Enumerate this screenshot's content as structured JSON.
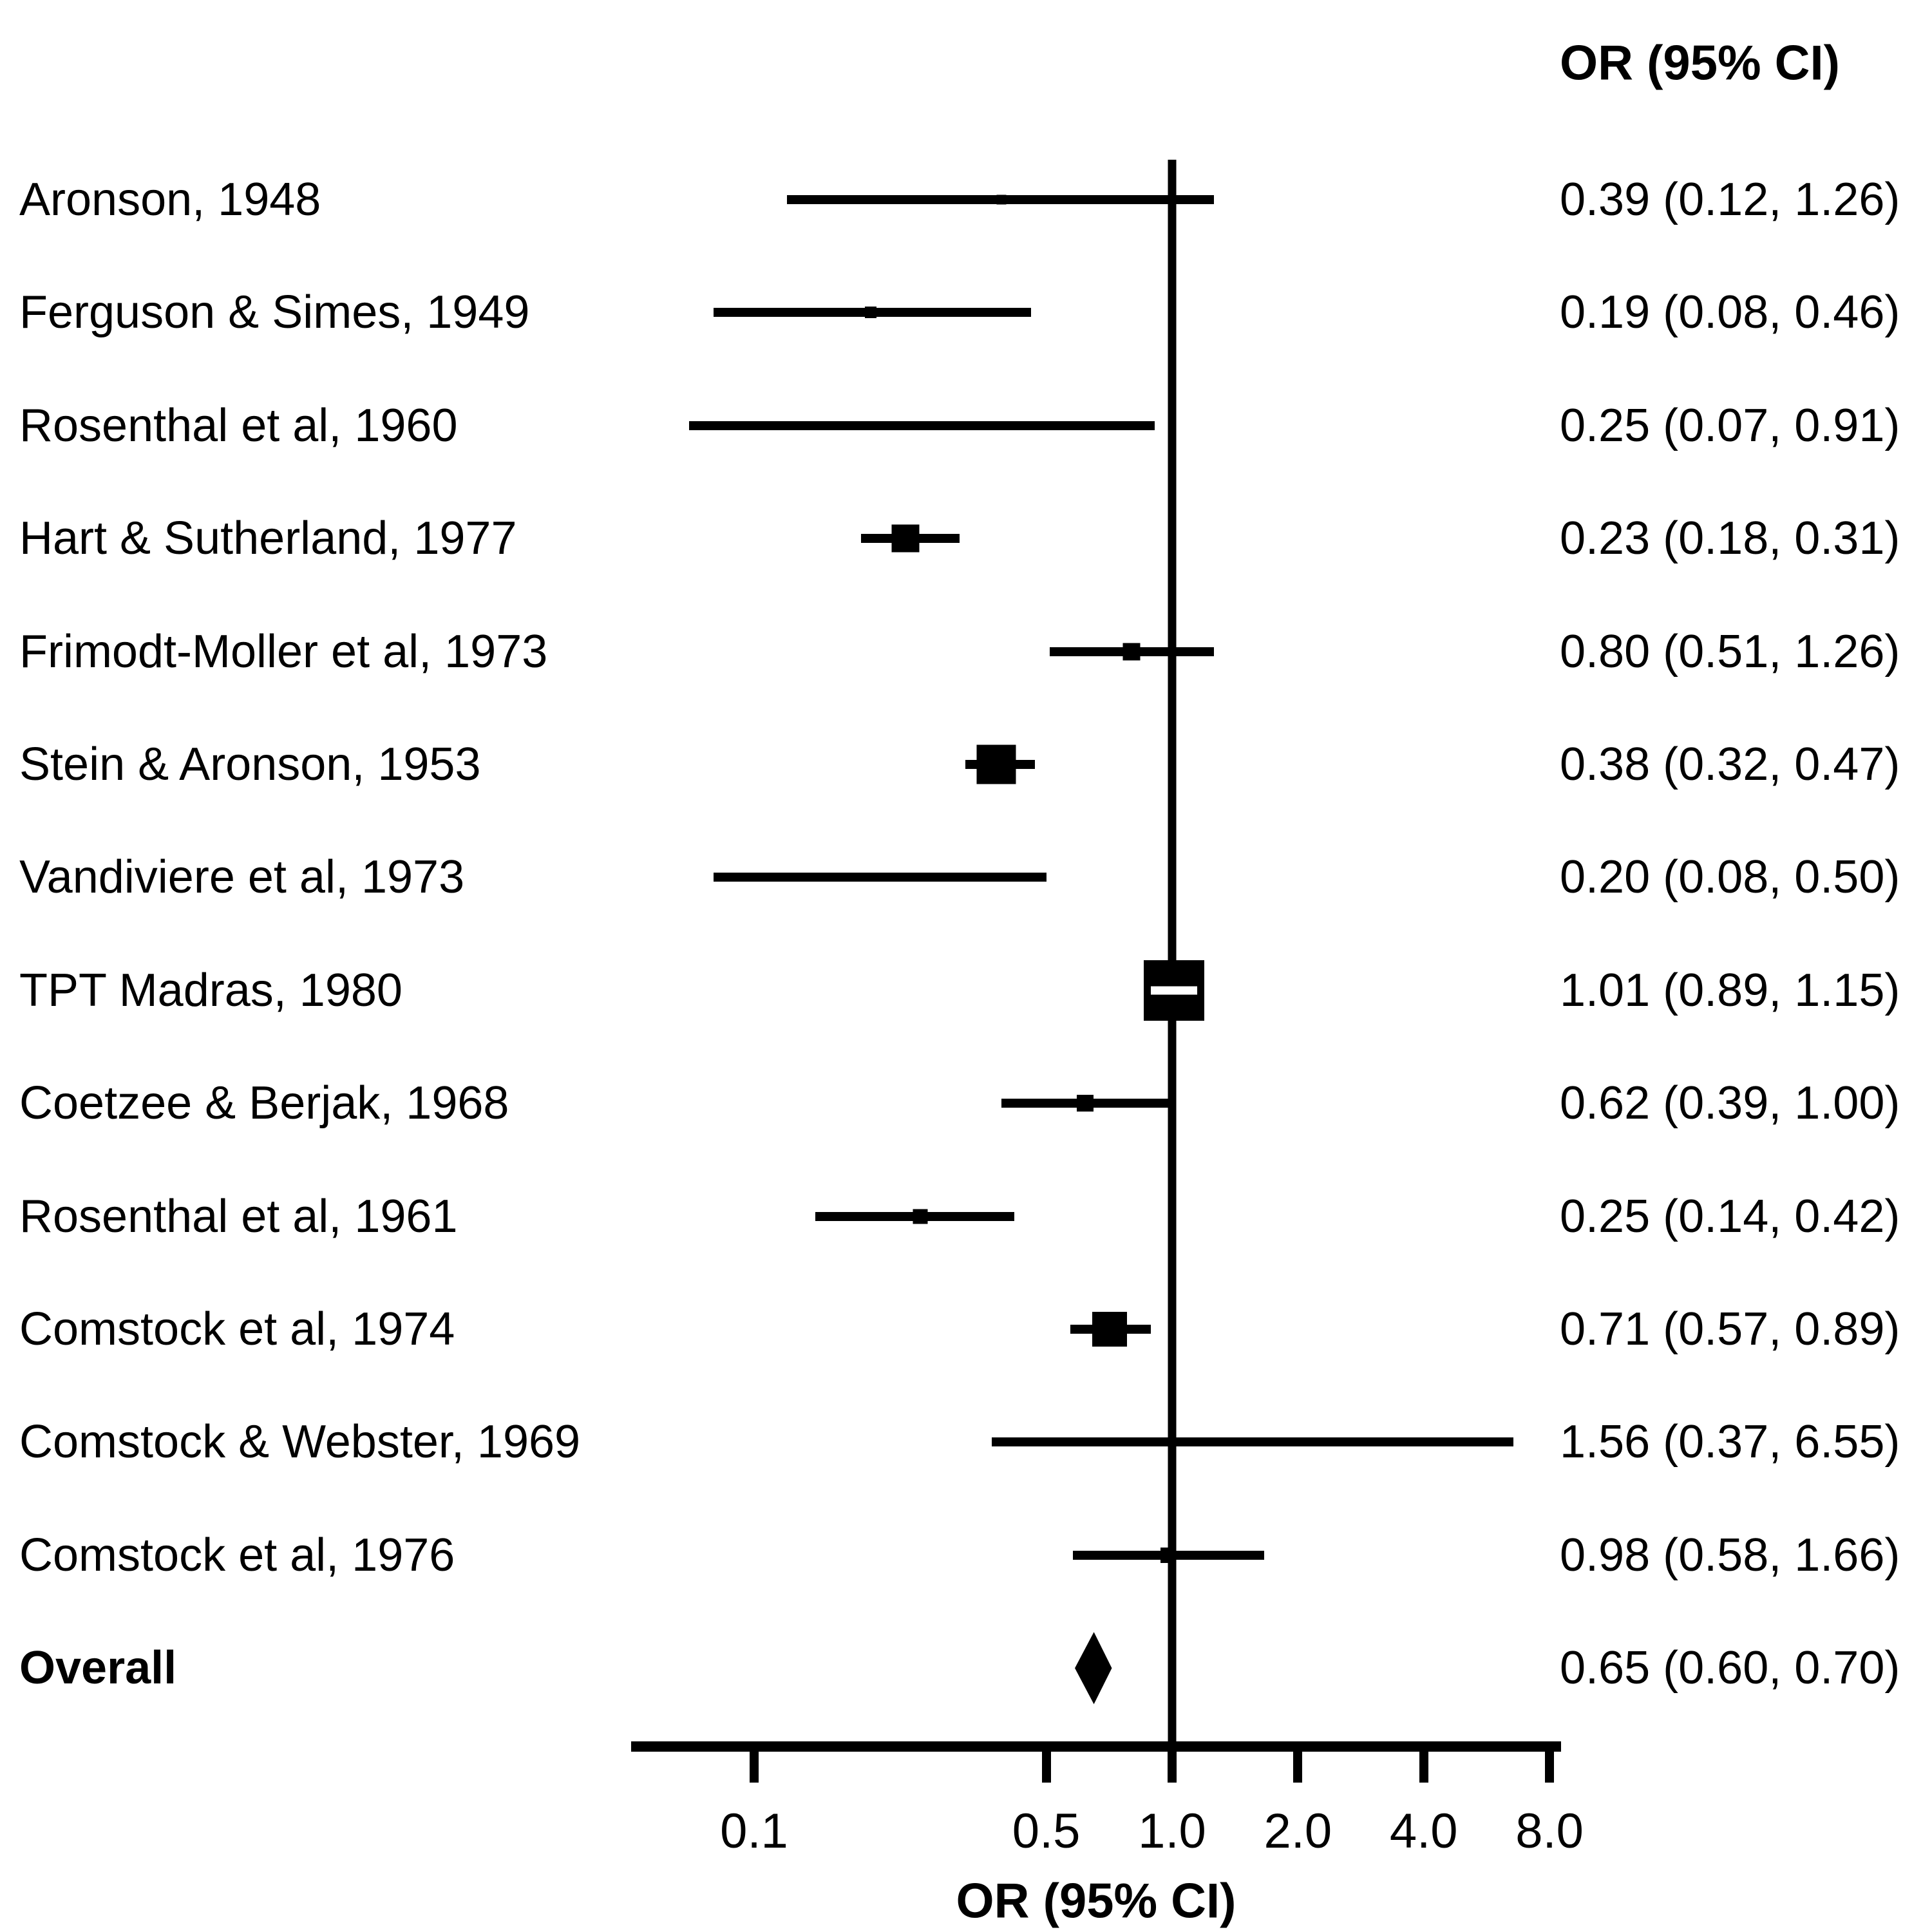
{
  "or_column_header": "OR (95% CI)",
  "chart_data": {
    "type": "forest",
    "xlabel": "OR (95% CI)",
    "x_scale": "log10",
    "x_ticks": [
      0.1,
      0.5,
      1.0,
      2.0,
      4.0,
      8.0
    ],
    "x_tick_labels": [
      "0.1",
      "0.5",
      "1.0",
      "2.0",
      "4.0",
      "8.0"
    ],
    "x_range": [
      0.05,
      8.2
    ],
    "reference_line": 1.0,
    "grid": false,
    "studies": [
      {
        "label": "Aronson, 1948",
        "or": 0.39,
        "ci_lower": 0.12,
        "ci_upper": 1.26,
        "or_text": "0.39 (0.12, 1.26)",
        "marker_size": 15
      },
      {
        "label": "Ferguson & Simes, 1949",
        "or": 0.19,
        "ci_lower": 0.08,
        "ci_upper": 0.46,
        "or_text": "0.19 (0.08, 0.46)",
        "marker_size": 18
      },
      {
        "label": "Rosenthal et al, 1960",
        "or": 0.25,
        "ci_lower": 0.07,
        "ci_upper": 0.91,
        "or_text": "0.25 (0.07, 0.91)",
        "marker_size": 12
      },
      {
        "label": "Hart & Sutherland, 1977",
        "or": 0.23,
        "ci_lower": 0.18,
        "ci_upper": 0.31,
        "or_text": "0.23 (0.18, 0.31)",
        "marker_size": 43
      },
      {
        "label": "Frimodt-Moller et al, 1973",
        "or": 0.8,
        "ci_lower": 0.51,
        "ci_upper": 1.26,
        "or_text": "0.80 (0.51, 1.26)",
        "marker_size": 27
      },
      {
        "label": "Stein & Aronson, 1953",
        "or": 0.38,
        "ci_lower": 0.32,
        "ci_upper": 0.47,
        "or_text": "0.38 (0.32, 0.47)",
        "marker_size": 61
      },
      {
        "label": "Vandiviere et al, 1973",
        "or": 0.2,
        "ci_lower": 0.08,
        "ci_upper": 0.5,
        "or_text": "0.20 (0.08, 0.50)",
        "marker_size": 14
      },
      {
        "label": "TPT Madras, 1980",
        "or": 1.01,
        "ci_lower": 0.89,
        "ci_upper": 1.15,
        "or_text": "1.01 (0.89, 1.15)",
        "marker_size": 94
      },
      {
        "label": "Coetzee & Berjak, 1968",
        "or": 0.62,
        "ci_lower": 0.39,
        "ci_upper": 1.0,
        "or_text": "0.62 (0.39, 1.00)",
        "marker_size": 26
      },
      {
        "label": "Rosenthal et al, 1961",
        "or": 0.25,
        "ci_lower": 0.14,
        "ci_upper": 0.42,
        "or_text": "0.25 (0.14, 0.42)",
        "marker_size": 23
      },
      {
        "label": "Comstock et al, 1974",
        "or": 0.71,
        "ci_lower": 0.57,
        "ci_upper": 0.89,
        "or_text": "0.71 (0.57, 0.89)",
        "marker_size": 54
      },
      {
        "label": "Comstock & Webster, 1969",
        "or": 1.56,
        "ci_lower": 0.37,
        "ci_upper": 6.55,
        "or_text": "1.56 (0.37, 6.55)",
        "marker_size": 8
      },
      {
        "label": "Comstock et al, 1976",
        "or": 0.98,
        "ci_lower": 0.58,
        "ci_upper": 1.66,
        "or_text": "0.98 (0.58, 1.66)",
        "marker_size": 24
      }
    ],
    "overall": {
      "label": "Overall",
      "or": 0.65,
      "ci_lower": 0.6,
      "ci_upper": 0.7,
      "or_text": "0.65 (0.60, 0.70)"
    },
    "colors": {
      "foreground": "#000000",
      "background": "#ffffff"
    }
  }
}
